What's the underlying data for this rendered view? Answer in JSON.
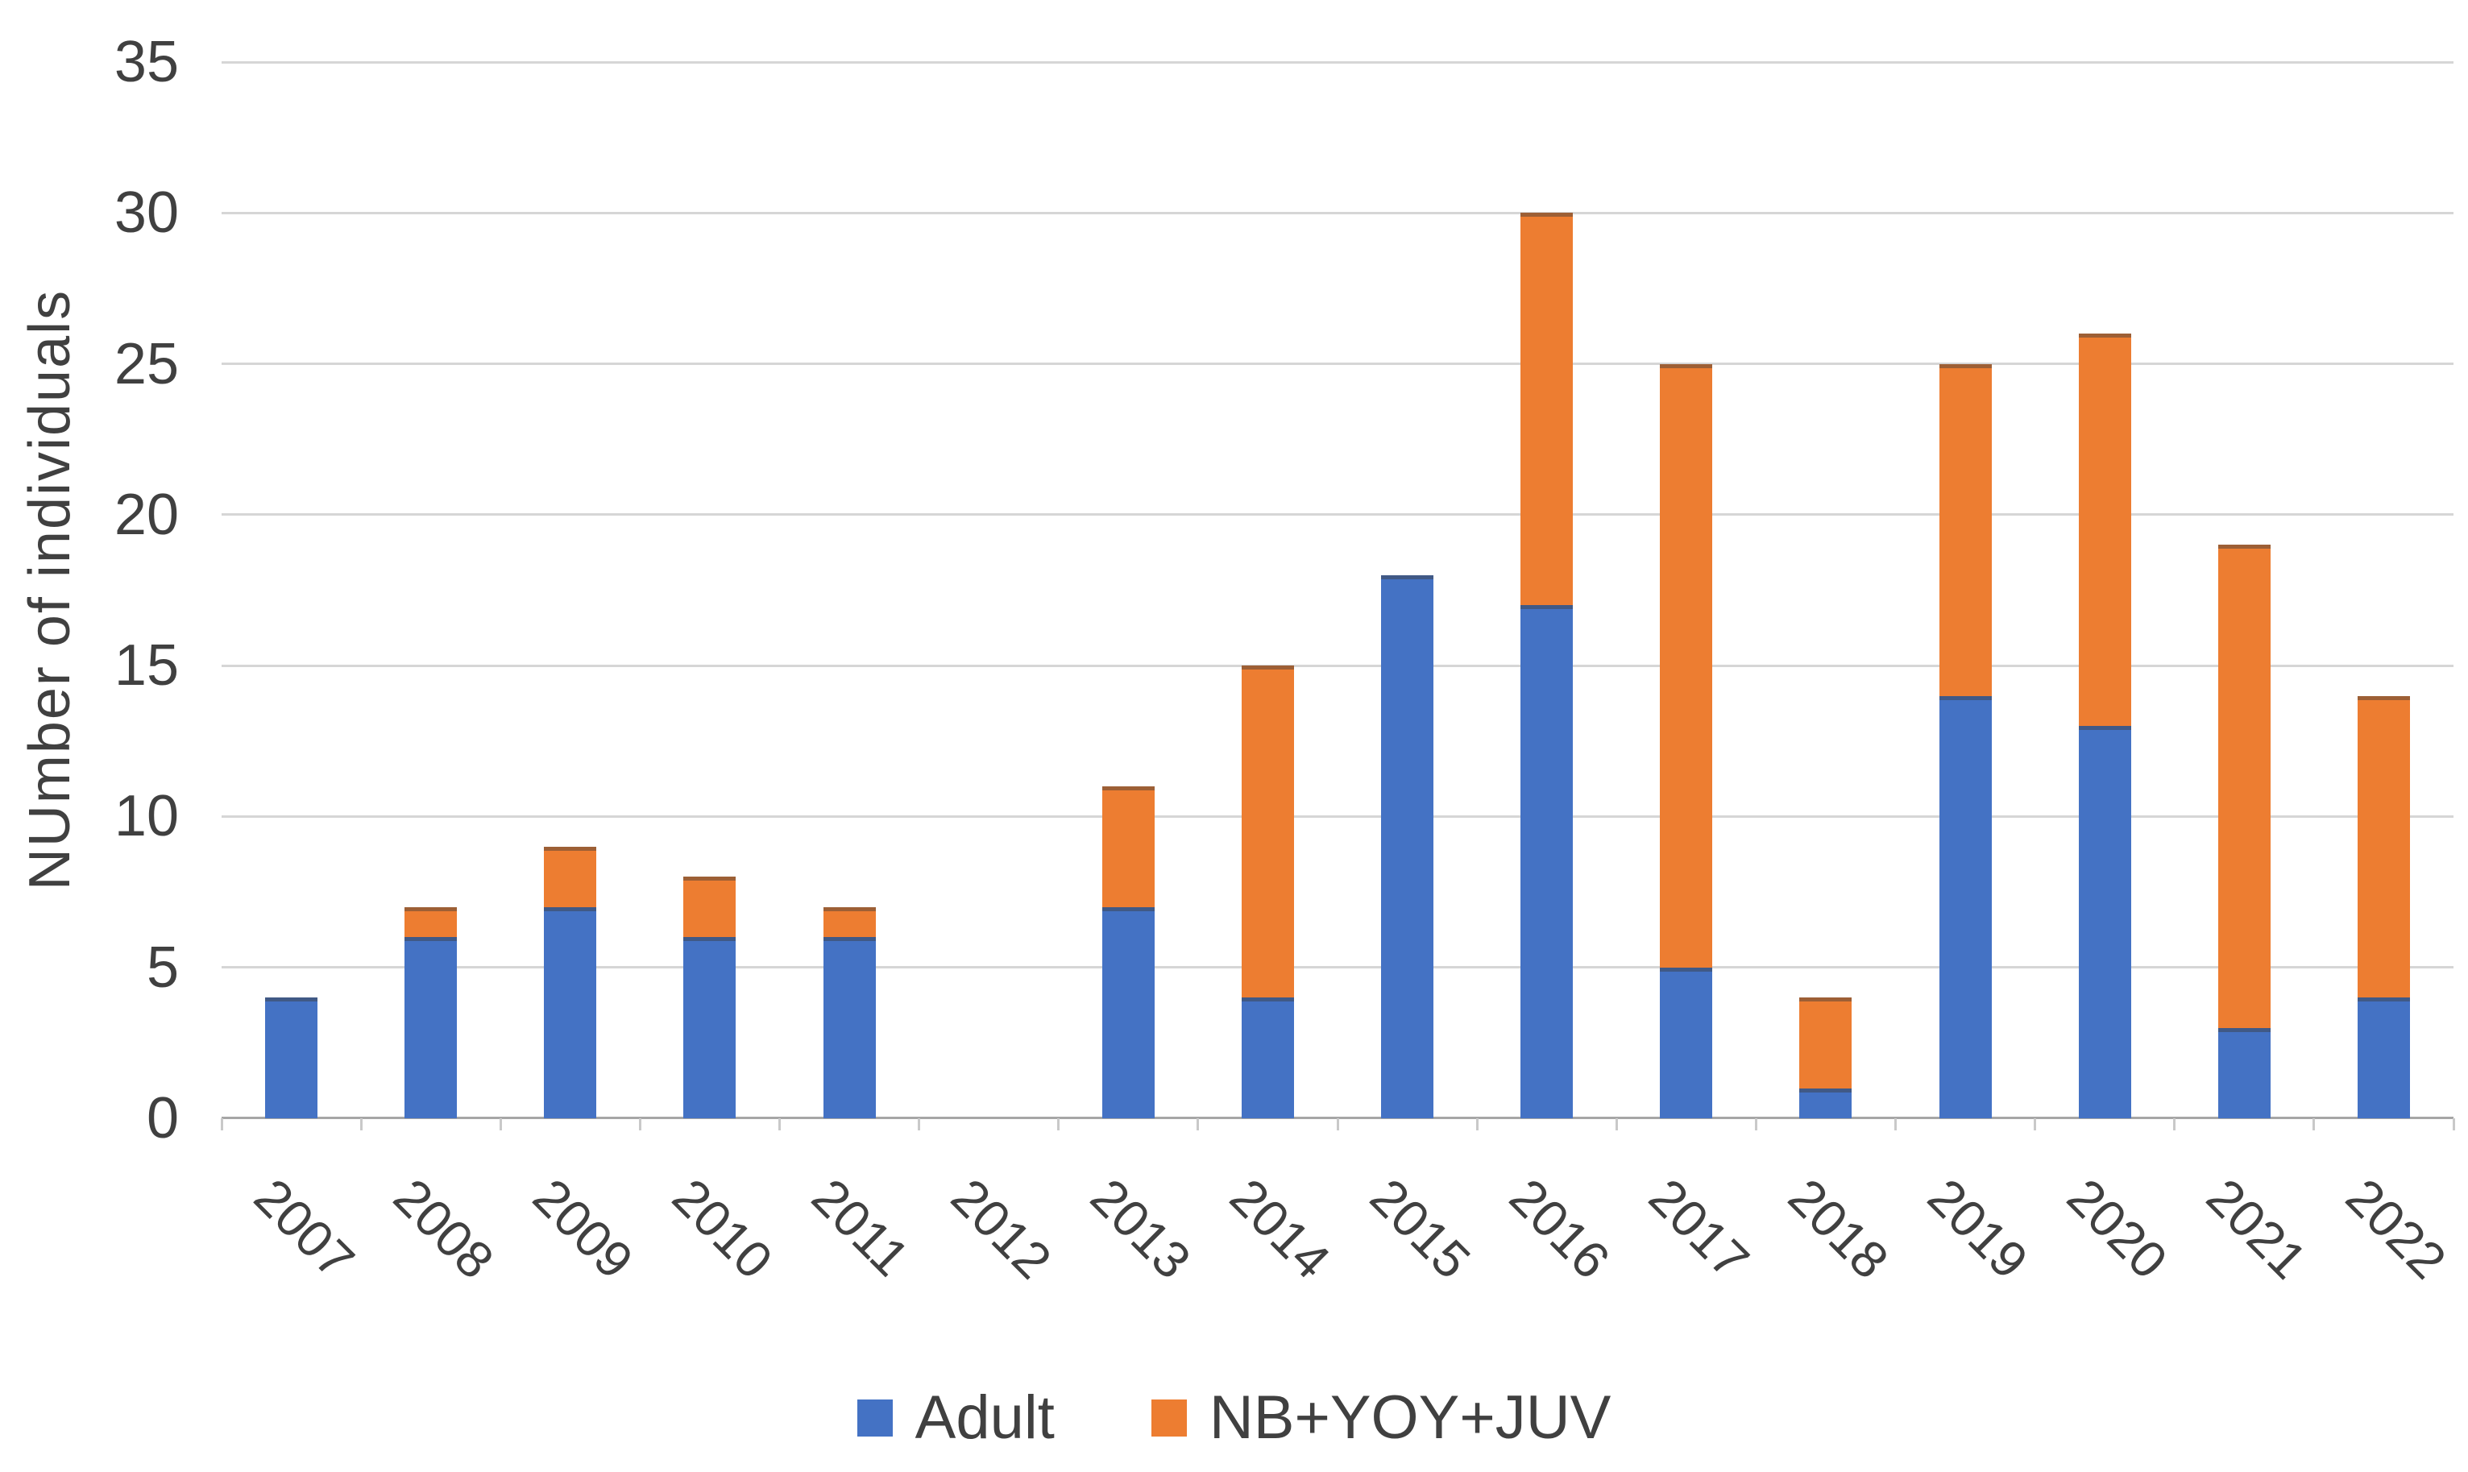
{
  "chart_data": {
    "type": "bar",
    "stacked": true,
    "categories": [
      "2007",
      "2008",
      "2009",
      "2010",
      "2011",
      "2012",
      "2013",
      "2014",
      "2015",
      "2016",
      "2017",
      "2018",
      "2019",
      "2020",
      "2021",
      "2022"
    ],
    "series": [
      {
        "name": "Adult",
        "color": "#4472C4",
        "values": [
          4,
          6,
          7,
          6,
          6,
          0,
          7,
          4,
          18,
          17,
          5,
          1,
          14,
          13,
          3,
          4
        ]
      },
      {
        "name": "NB+YOY+JUV",
        "color": "#ED7D31",
        "values": [
          0,
          1,
          2,
          2,
          1,
          0,
          4,
          11,
          0,
          13,
          20,
          3,
          11,
          13,
          16,
          10
        ]
      }
    ],
    "ylabel": "NUmber of individuals",
    "ylim": [
      0,
      35
    ],
    "yticks": [
      0,
      5,
      10,
      15,
      20,
      25,
      30,
      35
    ],
    "grid": true,
    "legend_position": "bottom",
    "axis_text_color": "#404040",
    "gridline_color": "#d6d6d6"
  }
}
